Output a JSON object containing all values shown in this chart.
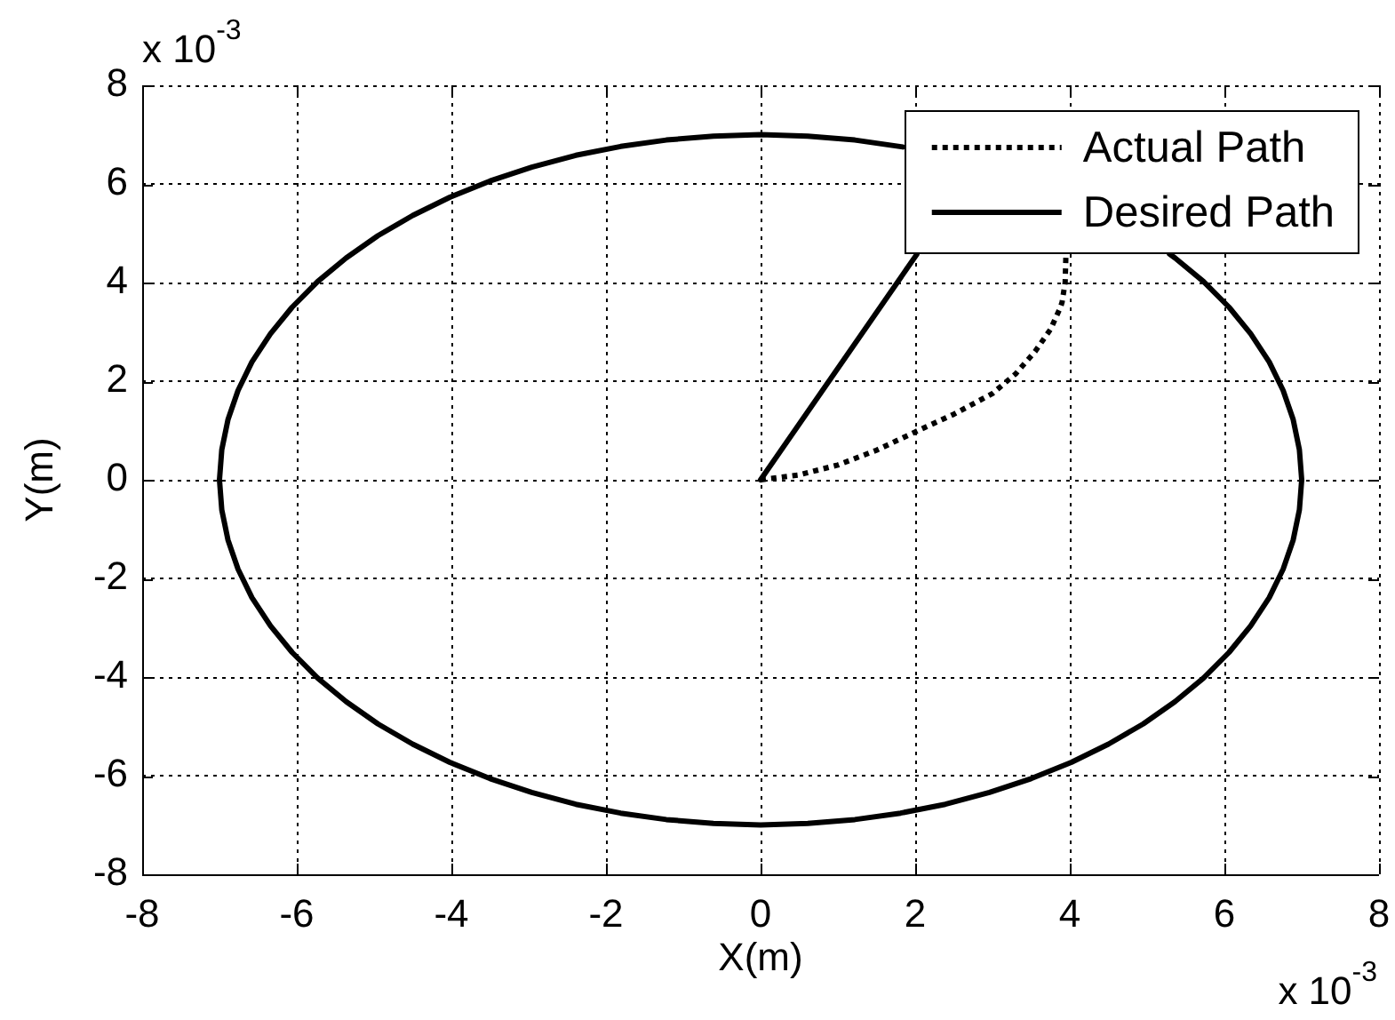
{
  "chart_data": {
    "type": "line",
    "xlabel": "X(m)",
    "ylabel": "Y(m)",
    "annotations": [
      "x 10$^{-3}$",
      "x 10$^{-3}$"
    ],
    "xlim": [
      -8,
      8
    ],
    "ylim": [
      -8,
      8
    ],
    "xticks": [
      -8,
      -6,
      -4,
      -2,
      0,
      2,
      4,
      6,
      8
    ],
    "yticks": [
      -8,
      -6,
      -4,
      -2,
      0,
      2,
      4,
      6,
      8
    ],
    "grid": true,
    "legend": "top right",
    "marker": "none",
    "series": [
      {
        "name": "Actual Path",
        "color": "#000000",
        "line_style": "dotted",
        "x": [
          0,
          0.5,
          1,
          1.5,
          2,
          2.5,
          3,
          3.3,
          3.55,
          3.75,
          3.88,
          3.9,
          3.94,
          3.95
        ],
        "values": [
          0,
          0.1,
          0.3,
          0.6,
          0.97,
          1.33,
          1.75,
          2.15,
          2.6,
          3.05,
          3.5,
          3.6,
          4,
          4.57
        ]
      },
      {
        "name": "Desired Path",
        "color": "#000000",
        "line_style": "solid",
        "x": [
          0,
          2.02,
          null,
          1.84,
          1.22,
          0.61,
          0,
          -0.61,
          -1.22,
          -1.81,
          -2.39,
          -2.96,
          -3.5,
          -4.02,
          -4.5,
          -4.95,
          -5.36,
          -5.73,
          -6.06,
          -6.34,
          -6.58,
          -6.76,
          -6.89,
          -6.97,
          -7,
          -6.97,
          -6.89,
          -6.76,
          -6.58,
          -6.34,
          -6.06,
          -5.73,
          -5.36,
          -4.95,
          -4.5,
          -4.02,
          -3.5,
          -2.96,
          -2.39,
          -1.81,
          -1.22,
          -0.61,
          0,
          0.61,
          1.22,
          1.81,
          2.39,
          2.96,
          3.5,
          4.02,
          4.5,
          4.95,
          5.36,
          5.73,
          6.06,
          6.34,
          6.58,
          6.76,
          6.89,
          6.97,
          7,
          6.97,
          6.89,
          6.76,
          6.58,
          6.34,
          6.06,
          5.73,
          5.36,
          5.29
        ],
        "values": [
          0,
          4.57,
          null,
          6.75,
          6.89,
          6.97,
          7,
          6.97,
          6.89,
          6.76,
          6.58,
          6.34,
          6.06,
          5.73,
          5.36,
          4.95,
          4.5,
          4.02,
          3.5,
          2.96,
          2.39,
          1.81,
          1.22,
          0.61,
          0,
          -0.61,
          -1.22,
          -1.81,
          -2.39,
          -2.96,
          -3.5,
          -4.02,
          -4.5,
          -4.95,
          -5.36,
          -5.73,
          -6.06,
          -6.34,
          -6.58,
          -6.76,
          -6.89,
          -6.97,
          -7,
          -6.97,
          -6.89,
          -6.76,
          -6.58,
          -6.34,
          -6.06,
          -5.73,
          -5.36,
          -4.95,
          -4.5,
          -4.02,
          -3.5,
          -2.96,
          -2.39,
          -1.81,
          -1.22,
          -0.61,
          0,
          0.61,
          1.22,
          1.81,
          2.39,
          2.96,
          3.5,
          4.02,
          4.5,
          4.58
        ]
      }
    ]
  }
}
